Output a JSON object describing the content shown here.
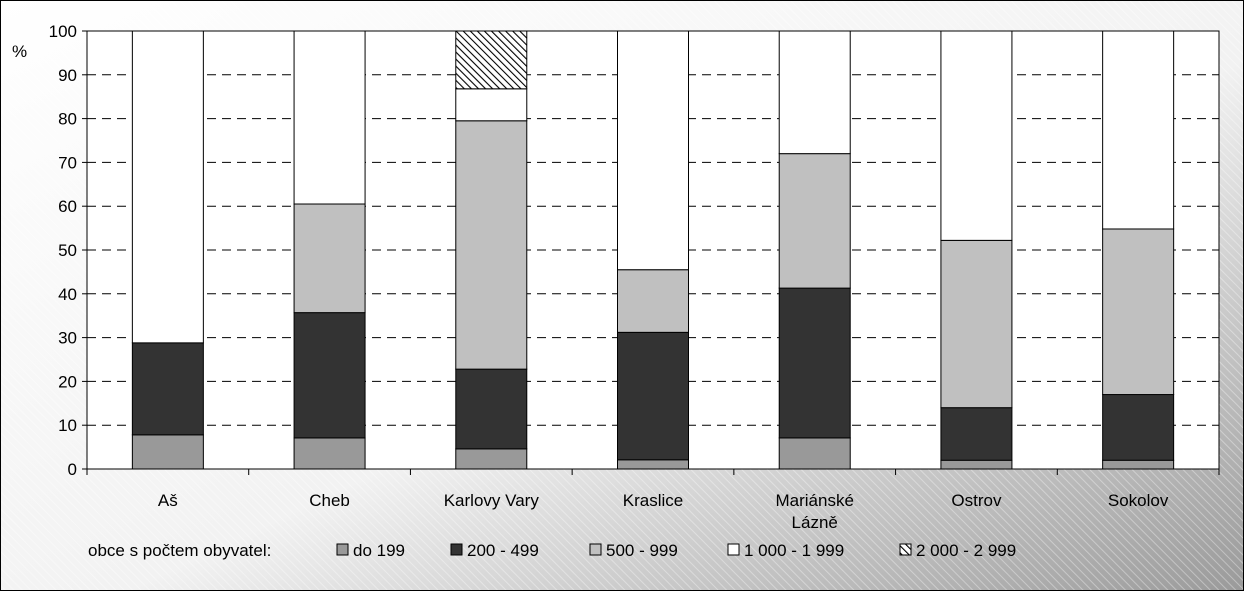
{
  "chart_data": {
    "type": "bar",
    "stacked": true,
    "ylabel": "%",
    "ylim": [
      0,
      100
    ],
    "yticks": [
      0,
      10,
      20,
      30,
      40,
      50,
      60,
      70,
      80,
      90,
      100
    ],
    "grid": "horizontal-dashed",
    "legend_position": "bottom",
    "legend_title": "obce s počtem obyvatel:",
    "categories": [
      "Aš",
      "Cheb",
      "Karlovy Vary",
      "Kraslice",
      "Mariánské Lázně",
      "Ostrov",
      "Sokolov"
    ],
    "category_lines": [
      [
        "Aš"
      ],
      [
        "Cheb"
      ],
      [
        "Karlovy Vary"
      ],
      [
        "Kraslice"
      ],
      [
        "Mariánské",
        "Lázně"
      ],
      [
        "Ostrov"
      ],
      [
        "Sokolov"
      ]
    ],
    "series": [
      {
        "name": "do 199",
        "color": "#999999",
        "pattern": "solid",
        "values": [
          7.8,
          7.1,
          4.6,
          2.1,
          7.1,
          2.0,
          2.0
        ]
      },
      {
        "name": "200 - 499",
        "color": "#333333",
        "pattern": "solid",
        "values": [
          21.0,
          28.6,
          18.2,
          29.1,
          34.2,
          12.0,
          15.0
        ]
      },
      {
        "name": "500 - 999",
        "color": "#c0c0c0",
        "pattern": "solid",
        "values": [
          0,
          24.8,
          56.7,
          14.3,
          30.7,
          38.2,
          37.8
        ]
      },
      {
        "name": "1 000 - 1 999",
        "color": "#ffffff",
        "pattern": "solid",
        "values": [
          71.2,
          39.5,
          7.3,
          54.5,
          28.0,
          47.8,
          45.2
        ]
      },
      {
        "name": "2 000 - 2 999",
        "color": "#ffffff",
        "pattern": "diagonal-hatch",
        "values": [
          0,
          0,
          13.2,
          0,
          0,
          0,
          0
        ]
      }
    ]
  }
}
